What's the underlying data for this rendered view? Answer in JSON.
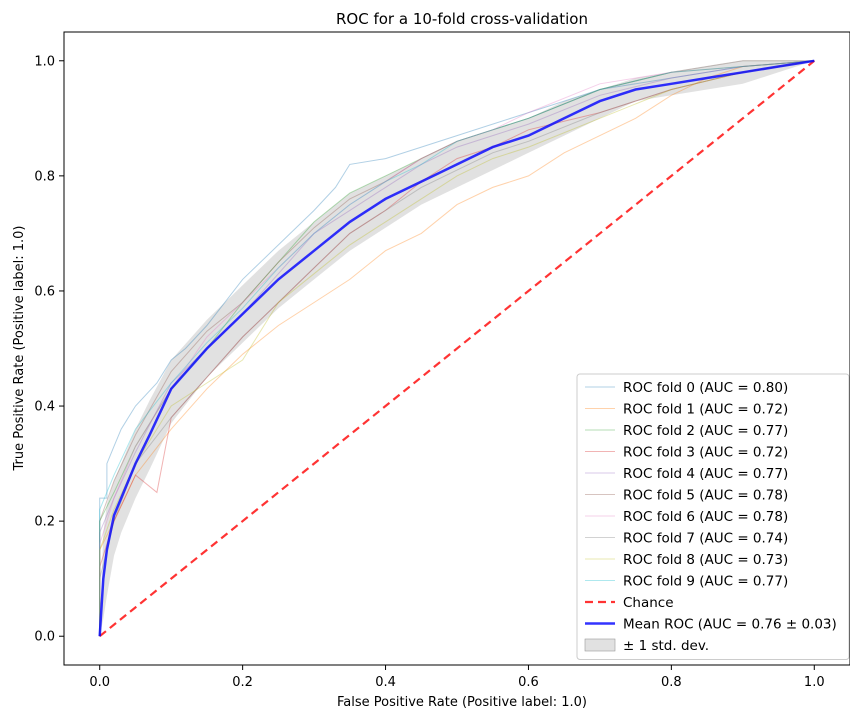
{
  "chart_data": {
    "type": "line",
    "title": "ROC for a 10-fold cross-validation",
    "xlabel": "False Positive Rate (Positive label: 1.0)",
    "ylabel": "True Positive Rate (Positive label: 1.0)",
    "xlim": [
      -0.05,
      1.05
    ],
    "ylim": [
      -0.05,
      1.05
    ],
    "xticks": [
      "0.0",
      "0.2",
      "0.4",
      "0.6",
      "0.8",
      "1.0"
    ],
    "yticks": [
      "0.0",
      "0.2",
      "0.4",
      "0.6",
      "0.8",
      "1.0"
    ],
    "grid": false,
    "legend_position": "lower-right",
    "series": [
      {
        "name": "ROC fold 0 (AUC = 0.80)",
        "color": "#1f77b4",
        "style": "thin-step",
        "x": [
          0,
          0,
          0.01,
          0.01,
          0.02,
          0.03,
          0.05,
          0.08,
          0.1,
          0.12,
          0.15,
          0.2,
          0.25,
          0.3,
          0.33,
          0.35,
          0.4,
          0.45,
          0.5,
          0.55,
          0.6,
          0.65,
          0.7,
          0.8,
          0.9,
          1
        ],
        "y": [
          0,
          0.24,
          0.24,
          0.3,
          0.33,
          0.36,
          0.4,
          0.44,
          0.48,
          0.5,
          0.54,
          0.62,
          0.68,
          0.74,
          0.78,
          0.82,
          0.83,
          0.85,
          0.87,
          0.89,
          0.91,
          0.93,
          0.95,
          0.97,
          0.99,
          1
        ]
      },
      {
        "name": "ROC fold 1 (AUC = 0.72)",
        "color": "#ff7f0e",
        "style": "thin-step",
        "x": [
          0,
          0,
          0.02,
          0.05,
          0.1,
          0.15,
          0.2,
          0.25,
          0.3,
          0.35,
          0.4,
          0.45,
          0.5,
          0.55,
          0.6,
          0.65,
          0.7,
          0.75,
          0.8,
          0.85,
          0.9,
          1
        ],
        "y": [
          0,
          0.15,
          0.2,
          0.28,
          0.36,
          0.43,
          0.49,
          0.54,
          0.58,
          0.62,
          0.67,
          0.7,
          0.75,
          0.78,
          0.8,
          0.84,
          0.87,
          0.9,
          0.94,
          0.97,
          0.99,
          1
        ]
      },
      {
        "name": "ROC fold 2 (AUC = 0.77)",
        "color": "#2ca02c",
        "style": "thin-step",
        "x": [
          0,
          0,
          0.02,
          0.05,
          0.1,
          0.15,
          0.2,
          0.25,
          0.3,
          0.35,
          0.4,
          0.45,
          0.5,
          0.55,
          0.6,
          0.7,
          0.8,
          0.9,
          1
        ],
        "y": [
          0,
          0.2,
          0.25,
          0.33,
          0.43,
          0.5,
          0.58,
          0.65,
          0.72,
          0.77,
          0.8,
          0.83,
          0.86,
          0.88,
          0.9,
          0.95,
          0.98,
          1,
          1
        ]
      },
      {
        "name": "ROC fold 3 (AUC = 0.72)",
        "color": "#d62728",
        "style": "thin-step",
        "x": [
          0,
          0,
          0.02,
          0.05,
          0.08,
          0.1,
          0.15,
          0.2,
          0.25,
          0.3,
          0.35,
          0.4,
          0.45,
          0.5,
          0.55,
          0.6,
          0.7,
          0.8,
          0.9,
          1
        ],
        "y": [
          0,
          0.12,
          0.2,
          0.28,
          0.25,
          0.38,
          0.45,
          0.52,
          0.58,
          0.64,
          0.7,
          0.74,
          0.79,
          0.83,
          0.85,
          0.88,
          0.91,
          0.95,
          0.98,
          1
        ]
      },
      {
        "name": "ROC fold 4 (AUC = 0.77)",
        "color": "#9467bd",
        "style": "thin-step",
        "x": [
          0,
          0,
          0.02,
          0.05,
          0.1,
          0.15,
          0.2,
          0.25,
          0.3,
          0.35,
          0.4,
          0.45,
          0.5,
          0.55,
          0.6,
          0.7,
          0.8,
          0.9,
          1
        ],
        "y": [
          0,
          0.18,
          0.24,
          0.32,
          0.44,
          0.5,
          0.56,
          0.63,
          0.7,
          0.74,
          0.78,
          0.82,
          0.85,
          0.87,
          0.89,
          0.94,
          0.97,
          0.99,
          1
        ]
      },
      {
        "name": "ROC fold 5 (AUC = 0.78)",
        "color": "#8c564b",
        "style": "thin-step",
        "x": [
          0,
          0,
          0.02,
          0.05,
          0.1,
          0.15,
          0.2,
          0.25,
          0.3,
          0.35,
          0.4,
          0.45,
          0.5,
          0.55,
          0.6,
          0.7,
          0.8,
          0.9,
          1
        ],
        "y": [
          0,
          0.2,
          0.27,
          0.35,
          0.46,
          0.53,
          0.58,
          0.65,
          0.71,
          0.76,
          0.79,
          0.83,
          0.86,
          0.88,
          0.9,
          0.95,
          0.98,
          0.99,
          1
        ]
      },
      {
        "name": "ROC fold 6 (AUC = 0.78)",
        "color": "#e377c2",
        "style": "thin-step",
        "x": [
          0,
          0,
          0.02,
          0.05,
          0.1,
          0.15,
          0.2,
          0.25,
          0.3,
          0.35,
          0.4,
          0.45,
          0.5,
          0.55,
          0.6,
          0.7,
          0.8,
          0.9,
          1
        ],
        "y": [
          0,
          0.16,
          0.24,
          0.33,
          0.43,
          0.52,
          0.58,
          0.64,
          0.7,
          0.75,
          0.79,
          0.83,
          0.86,
          0.88,
          0.91,
          0.96,
          0.98,
          1,
          1
        ]
      },
      {
        "name": "ROC fold 7 (AUC = 0.74)",
        "color": "#7f7f7f",
        "style": "thin-step",
        "x": [
          0,
          0,
          0.02,
          0.05,
          0.1,
          0.15,
          0.2,
          0.25,
          0.3,
          0.35,
          0.4,
          0.45,
          0.5,
          0.55,
          0.6,
          0.7,
          0.8,
          0.9,
          1
        ],
        "y": [
          0,
          0.1,
          0.2,
          0.3,
          0.38,
          0.45,
          0.52,
          0.58,
          0.64,
          0.7,
          0.74,
          0.78,
          0.81,
          0.84,
          0.86,
          0.91,
          0.95,
          0.98,
          1
        ]
      },
      {
        "name": "ROC fold 8 (AUC = 0.73)",
        "color": "#bcbd22",
        "style": "thin-step",
        "x": [
          0,
          0,
          0.02,
          0.05,
          0.1,
          0.15,
          0.2,
          0.25,
          0.3,
          0.35,
          0.4,
          0.45,
          0.5,
          0.55,
          0.6,
          0.7,
          0.8,
          0.9,
          1
        ],
        "y": [
          0,
          0.15,
          0.22,
          0.3,
          0.4,
          0.44,
          0.48,
          0.58,
          0.63,
          0.68,
          0.72,
          0.76,
          0.8,
          0.83,
          0.85,
          0.9,
          0.95,
          0.98,
          1
        ]
      },
      {
        "name": "ROC fold 9 (AUC = 0.77)",
        "color": "#17becf",
        "style": "thin-step",
        "x": [
          0,
          0,
          0.02,
          0.05,
          0.1,
          0.15,
          0.2,
          0.25,
          0.3,
          0.35,
          0.4,
          0.45,
          0.5,
          0.55,
          0.6,
          0.7,
          0.8,
          0.9,
          1
        ],
        "y": [
          0,
          0.22,
          0.28,
          0.36,
          0.44,
          0.51,
          0.57,
          0.64,
          0.7,
          0.75,
          0.79,
          0.82,
          0.86,
          0.88,
          0.9,
          0.95,
          0.98,
          0.99,
          1
        ]
      },
      {
        "name": "Chance",
        "color": "#ff0000",
        "style": "dashed",
        "x": [
          0,
          1
        ],
        "y": [
          0,
          1
        ]
      },
      {
        "name": "Mean ROC (AUC = 0.76 ± 0.03)",
        "color": "#0000ff",
        "style": "bold",
        "x": [
          0,
          0.005,
          0.01,
          0.02,
          0.03,
          0.05,
          0.07,
          0.1,
          0.15,
          0.2,
          0.25,
          0.3,
          0.35,
          0.4,
          0.45,
          0.5,
          0.55,
          0.6,
          0.65,
          0.7,
          0.75,
          0.8,
          0.85,
          0.9,
          0.95,
          1
        ],
        "y": [
          0,
          0.1,
          0.15,
          0.21,
          0.24,
          0.3,
          0.35,
          0.43,
          0.5,
          0.56,
          0.62,
          0.67,
          0.72,
          0.76,
          0.79,
          0.82,
          0.85,
          0.87,
          0.9,
          0.93,
          0.95,
          0.96,
          0.97,
          0.98,
          0.99,
          1
        ]
      }
    ],
    "std_band": {
      "name": "± 1 std. dev.",
      "color": "#bdbdbd",
      "x": [
        0,
        0.005,
        0.01,
        0.02,
        0.03,
        0.05,
        0.07,
        0.1,
        0.15,
        0.2,
        0.25,
        0.3,
        0.35,
        0.4,
        0.45,
        0.5,
        0.55,
        0.6,
        0.65,
        0.7,
        0.75,
        0.8,
        0.85,
        0.9,
        0.95,
        1
      ],
      "upper": [
        0,
        0.18,
        0.23,
        0.27,
        0.3,
        0.36,
        0.41,
        0.48,
        0.55,
        0.61,
        0.67,
        0.72,
        0.77,
        0.8,
        0.83,
        0.86,
        0.88,
        0.9,
        0.93,
        0.95,
        0.97,
        0.98,
        0.99,
        1,
        1,
        1
      ],
      "lower": [
        0,
        0.03,
        0.07,
        0.14,
        0.18,
        0.24,
        0.29,
        0.37,
        0.45,
        0.51,
        0.57,
        0.62,
        0.67,
        0.71,
        0.75,
        0.78,
        0.81,
        0.84,
        0.87,
        0.9,
        0.93,
        0.94,
        0.95,
        0.96,
        0.98,
        1
      ]
    }
  }
}
